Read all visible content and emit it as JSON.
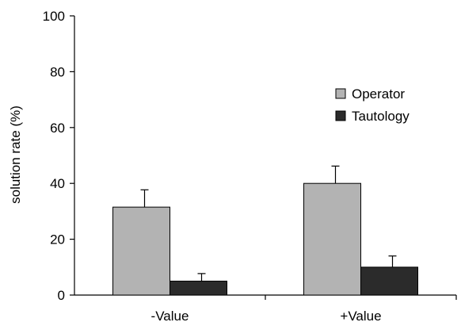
{
  "chart_data": {
    "type": "bar",
    "title": "",
    "xlabel": "",
    "ylabel": "solution rate (%)",
    "ylim": [
      0,
      100
    ],
    "yticks": [
      0,
      20,
      40,
      60,
      80,
      100
    ],
    "grid": false,
    "legend_position": "right",
    "categories": [
      "-Value",
      "+Value"
    ],
    "series": [
      {
        "name": "Operator",
        "values": [
          31.5,
          40
        ],
        "errors": [
          6.2,
          6.2
        ],
        "color": "#b3b3b3"
      },
      {
        "name": "Tautology",
        "values": [
          5,
          10
        ],
        "errors": [
          2.7,
          4
        ],
        "color": "#2b2b2b"
      }
    ]
  }
}
